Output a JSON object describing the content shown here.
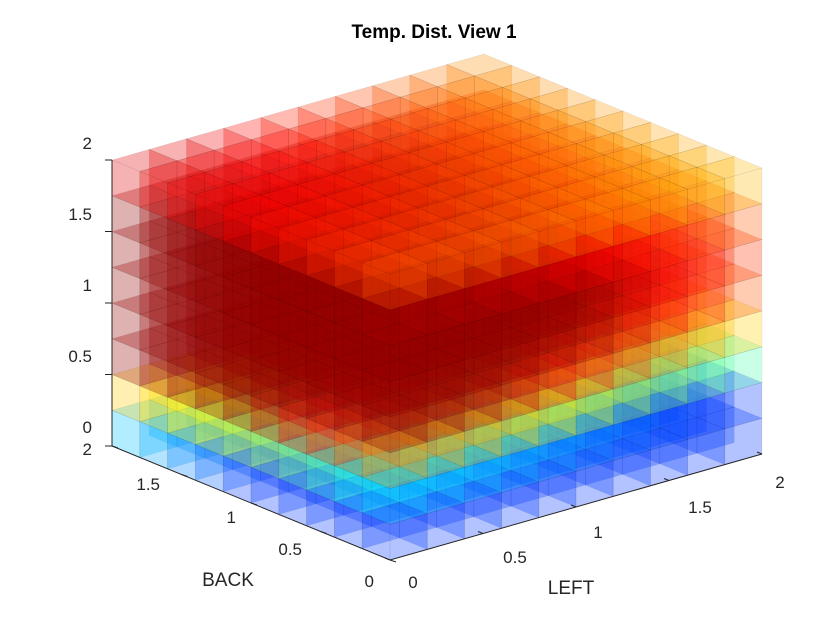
{
  "chart_data": {
    "type": "heatmap",
    "subtype": "3d-voxel-volume",
    "title": "Temp. Dist. View 1",
    "xlabel": "LEFT",
    "ylabel": "BACK",
    "zlabel": "",
    "xlim": [
      0,
      2
    ],
    "ylim": [
      0,
      2
    ],
    "zlim": [
      0,
      2
    ],
    "x_ticks": [
      "0",
      "0.5",
      "1",
      "1.5",
      "2"
    ],
    "y_ticks": [
      "0",
      "0.5",
      "1",
      "1.5",
      "2"
    ],
    "z_ticks": [
      "0",
      "0.5",
      "1",
      "1.5",
      "2"
    ],
    "grid_divisions": {
      "x": 10,
      "y": 10,
      "z": 8
    },
    "colormap": "jet",
    "face_alpha": 0.3,
    "hot_spot": {
      "left": 0,
      "back": 2,
      "height": 1.0
    },
    "top_face_left_edge_values_front_to_back": [
      0.55,
      0.6,
      0.65,
      0.7,
      0.74,
      0.78,
      0.8,
      0.82,
      0.84,
      0.86
    ],
    "front_face_bottom_values_left_to_right": [
      0.3,
      0.3,
      0.32,
      0.33,
      0.35,
      0.38,
      0.4,
      0.42,
      0.44,
      0.45
    ]
  }
}
